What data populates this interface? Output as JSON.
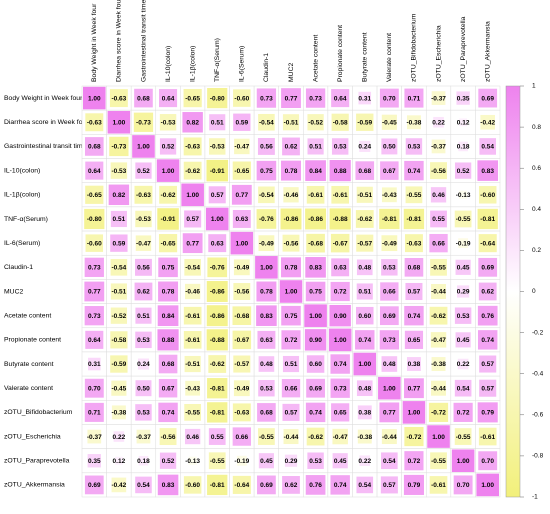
{
  "chart_data": {
    "type": "heatmap",
    "labels": [
      "Body Weight in Week four",
      "Diarrhea score in Week four",
      "Gastrointestinal transit time",
      "IL-10(colon)",
      "IL-1β(colon)",
      "TNF-α(Serum)",
      "IL-6(Serum)",
      "Claudin-1",
      "MUC2",
      "Acetate content",
      "Propionate content",
      "Butyrate content",
      "Valerate content",
      "zOTU_Bifidobacterium",
      "zOTU_Escherichia",
      "zOTU_Paraprevotella",
      "zOTU_Akkermansia"
    ],
    "z": [
      [
        1.0,
        -0.63,
        0.68,
        0.64,
        -0.65,
        -0.8,
        -0.6,
        0.73,
        0.77,
        0.73,
        0.64,
        0.31,
        0.7,
        0.71,
        -0.37,
        0.35,
        0.69
      ],
      [
        -0.63,
        1.0,
        -0.73,
        -0.53,
        0.82,
        0.51,
        0.59,
        -0.54,
        -0.51,
        -0.52,
        -0.58,
        -0.59,
        -0.45,
        -0.38,
        0.22,
        0.12,
        -0.42
      ],
      [
        0.68,
        -0.73,
        1.0,
        0.52,
        -0.63,
        -0.53,
        -0.47,
        0.56,
        0.62,
        0.51,
        0.53,
        0.24,
        0.5,
        0.53,
        -0.37,
        0.18,
        0.54
      ],
      [
        0.64,
        -0.53,
        0.52,
        1.0,
        -0.62,
        -0.91,
        -0.65,
        0.75,
        0.78,
        0.84,
        0.88,
        0.68,
        0.67,
        0.74,
        -0.56,
        0.52,
        0.83
      ],
      [
        -0.65,
        0.82,
        -0.63,
        -0.62,
        1.0,
        0.57,
        0.77,
        -0.54,
        -0.46,
        -0.61,
        -0.61,
        -0.51,
        -0.43,
        -0.55,
        0.46,
        -0.13,
        -0.6
      ],
      [
        -0.8,
        0.51,
        -0.53,
        -0.91,
        0.57,
        1.0,
        0.63,
        -0.76,
        -0.86,
        -0.86,
        -0.88,
        -0.62,
        -0.81,
        -0.81,
        0.55,
        -0.55,
        -0.81
      ],
      [
        -0.6,
        0.59,
        -0.47,
        -0.65,
        0.77,
        0.63,
        1.0,
        -0.49,
        -0.56,
        -0.68,
        -0.67,
        -0.57,
        -0.49,
        -0.63,
        0.66,
        -0.19,
        -0.64
      ],
      [
        0.73,
        -0.54,
        0.56,
        0.75,
        -0.54,
        -0.76,
        -0.49,
        1.0,
        0.78,
        0.83,
        0.63,
        0.48,
        0.53,
        0.68,
        -0.55,
        0.45,
        0.69
      ],
      [
        0.77,
        -0.51,
        0.62,
        0.78,
        -0.46,
        -0.86,
        -0.56,
        0.78,
        1.0,
        0.75,
        0.72,
        0.51,
        0.66,
        0.57,
        -0.44,
        0.29,
        0.62
      ],
      [
        0.73,
        -0.52,
        0.51,
        0.84,
        -0.61,
        -0.86,
        -0.68,
        0.83,
        0.75,
        1.0,
        0.9,
        0.6,
        0.69,
        0.74,
        -0.62,
        0.53,
        0.76
      ],
      [
        0.64,
        -0.58,
        0.53,
        0.88,
        -0.61,
        -0.88,
        -0.67,
        0.63,
        0.72,
        0.9,
        1.0,
        0.74,
        0.73,
        0.65,
        -0.47,
        0.45,
        0.74
      ],
      [
        0.31,
        -0.59,
        0.24,
        0.68,
        -0.51,
        -0.62,
        -0.57,
        0.48,
        0.51,
        0.6,
        0.74,
        1.0,
        0.48,
        0.38,
        -0.38,
        0.22,
        0.57
      ],
      [
        0.7,
        -0.45,
        0.5,
        0.67,
        -0.43,
        -0.81,
        -0.49,
        0.53,
        0.66,
        0.69,
        0.73,
        0.48,
        1.0,
        0.77,
        -0.44,
        0.54,
        0.57
      ],
      [
        0.71,
        -0.38,
        0.53,
        0.74,
        -0.55,
        -0.81,
        -0.63,
        0.68,
        0.57,
        0.74,
        0.65,
        0.38,
        0.77,
        1.0,
        -0.72,
        0.72,
        0.79
      ],
      [
        -0.37,
        0.22,
        -0.37,
        -0.56,
        0.46,
        0.55,
        0.66,
        -0.55,
        -0.44,
        -0.62,
        -0.47,
        -0.38,
        -0.44,
        -0.72,
        1.0,
        -0.55,
        -0.61
      ],
      [
        0.35,
        0.12,
        0.18,
        0.52,
        -0.13,
        -0.55,
        -0.19,
        0.45,
        0.29,
        0.53,
        0.45,
        0.22,
        0.54,
        0.72,
        -0.55,
        1.0,
        0.7
      ],
      [
        0.69,
        -0.42,
        0.54,
        0.83,
        -0.6,
        -0.81,
        -0.64,
        0.69,
        0.62,
        0.76,
        0.74,
        0.54,
        0.57,
        0.79,
        -0.61,
        0.7,
        1.0
      ]
    ],
    "value_labels": [
      [
        "1.00",
        "-0.63",
        "0.68",
        "0.64",
        "-0.65",
        "-0.80",
        "-0.60",
        "0.73",
        "0.77",
        "0.73",
        "0.64",
        "0.31",
        "0.70",
        "0.71",
        "-0.37",
        "0.35",
        "0.69"
      ],
      [
        "-0.63",
        "1.00",
        "-0.73",
        "-0.53",
        "0.82",
        "0.51",
        "0.59",
        "-0.54",
        "-0.51",
        "-0.52",
        "-0.58",
        "-0.59",
        "-0.45",
        "-0.38",
        "0.22",
        "0.12",
        "-0.42"
      ],
      [
        "0.68",
        "-0.73",
        "1.00",
        "0.52",
        "-0.63",
        "-0.53",
        "-0.47",
        "0.56",
        "0.62",
        "0.51",
        "0.53",
        "0.24",
        "0.50",
        "0.53",
        "-0.37",
        "0.18",
        "0.54"
      ],
      [
        "0.64",
        "-0.53",
        "0.52",
        "1.00",
        "-0.62",
        "-0.91",
        "-0.65",
        "0.75",
        "0.78",
        "0.84",
        "0.88",
        "0.68",
        "0.67",
        "0.74",
        "-0.56",
        "0.52",
        "0.83"
      ],
      [
        "-0.65",
        "0.82",
        "-0.63",
        "-0.62",
        "1.00",
        "0.57",
        "0.77",
        "-0.54",
        "-0.46",
        "-0.61",
        "-0.61",
        "-0.51",
        "-0.43",
        "-0.55",
        "0.46",
        "-0.13",
        "-0.60"
      ],
      [
        "-0.80",
        "0.51",
        "-0.53",
        "-0.91",
        "0.57",
        "1.00",
        "0.63",
        "-0.76",
        "-0.86",
        "-0.86",
        "-0.88",
        "-0.62",
        "-0.81",
        "-0.81",
        "0.55",
        "-0.55",
        "-0.81"
      ],
      [
        "-0.60",
        "0.59",
        "-0.47",
        "-0.65",
        "0.77",
        "0.63",
        "1.00",
        "-0.49",
        "-0.56",
        "-0.68",
        "-0.67",
        "-0.57",
        "-0.49",
        "-0.63",
        "0.66",
        "-0.19",
        "-0.64"
      ],
      [
        "0.73",
        "-0.54",
        "0.56",
        "0.75",
        "-0.54",
        "-0.76",
        "-0.49",
        "1.00",
        "0.78",
        "0.83",
        "0.63",
        "0.48",
        "0.53",
        "0.68",
        "-0.55",
        "0.45",
        "0.69"
      ],
      [
        "0.77",
        "-0.51",
        "0.62",
        "0.78",
        "-0.46",
        "-0.86",
        "-0.56",
        "0.78",
        "1.00",
        "0.75",
        "0.72",
        "0.51",
        "0.66",
        "0.57",
        "-0.44",
        "0.29",
        "0.62"
      ],
      [
        "0.73",
        "-0.52",
        "0.51",
        "0.84",
        "-0.61",
        "-0.86",
        "-0.68",
        "0.83",
        "0.75",
        "1.00",
        "0.90",
        "0.60",
        "0.69",
        "0.74",
        "-0.62",
        "0.53",
        "0.76"
      ],
      [
        "0.64",
        "-0.58",
        "0.53",
        "0.88",
        "-0.61",
        "-0.88",
        "-0.67",
        "0.63",
        "0.72",
        "0.90",
        "1.00",
        "0.74",
        "0.73",
        "0.65",
        "-0.47",
        "0.45",
        "0.74"
      ],
      [
        "0.31",
        "-0.59",
        "0.24",
        "0.68",
        "-0.51",
        "-0.62",
        "-0.57",
        "0.48",
        "0.51",
        "0.60",
        "0.74",
        "1.00",
        "0.48",
        "0.38",
        "-0.38",
        "0.22",
        "0.57"
      ],
      [
        "0.70",
        "-0.45",
        "0.50",
        "0.67",
        "-0.43",
        "-0.81",
        "-0.49",
        "0.53",
        "0.66",
        "0.69",
        "0.73",
        "0.48",
        "1.00",
        "0.77",
        "-0.44",
        "0.54",
        "0.57"
      ],
      [
        "0.71",
        "-0.38",
        "0.53",
        "0.74",
        "-0.55",
        "-0.81",
        "-0.63",
        "0.68",
        "0.57",
        "0.74",
        "0.65",
        "0.38",
        "0.77",
        "1.00",
        "-0.72",
        "0.72",
        "0.79"
      ],
      [
        "-0.37",
        "0.22",
        "-0.37",
        "-0.56",
        "0.46",
        "0.55",
        "0.66",
        "-0.55",
        "-0.44",
        "-0.62",
        "-0.47",
        "-0.38",
        "-0.44",
        "-0.72",
        "1.00",
        "-0.55",
        "-0.61"
      ],
      [
        "0.35",
        "0.12",
        "0.18",
        "0.52",
        "-0.13",
        "-0.55",
        "-0.19",
        "0.45",
        "0.29",
        "0.53",
        "0.45",
        "0.22",
        "0.54",
        "0.72",
        "-0.55",
        "1.00",
        "0.70"
      ],
      [
        "0.69",
        "-0.42",
        "0.54",
        "0.83",
        "-0.60",
        "-0.81",
        "-0.64",
        "0.69",
        "0.62",
        "0.76",
        "0.74",
        "0.54",
        "0.57",
        "0.79",
        "-0.61",
        "0.70",
        "1.00"
      ]
    ],
    "clim": [
      -1,
      1
    ],
    "cticks": [
      1,
      0.8,
      0.6,
      0.4,
      0.2,
      0,
      -0.2,
      -0.4,
      -0.6,
      -0.8,
      -1
    ],
    "colors": {
      "low": "#f2f07a",
      "mid": "#ffffff",
      "high": "#ee82ee"
    }
  }
}
